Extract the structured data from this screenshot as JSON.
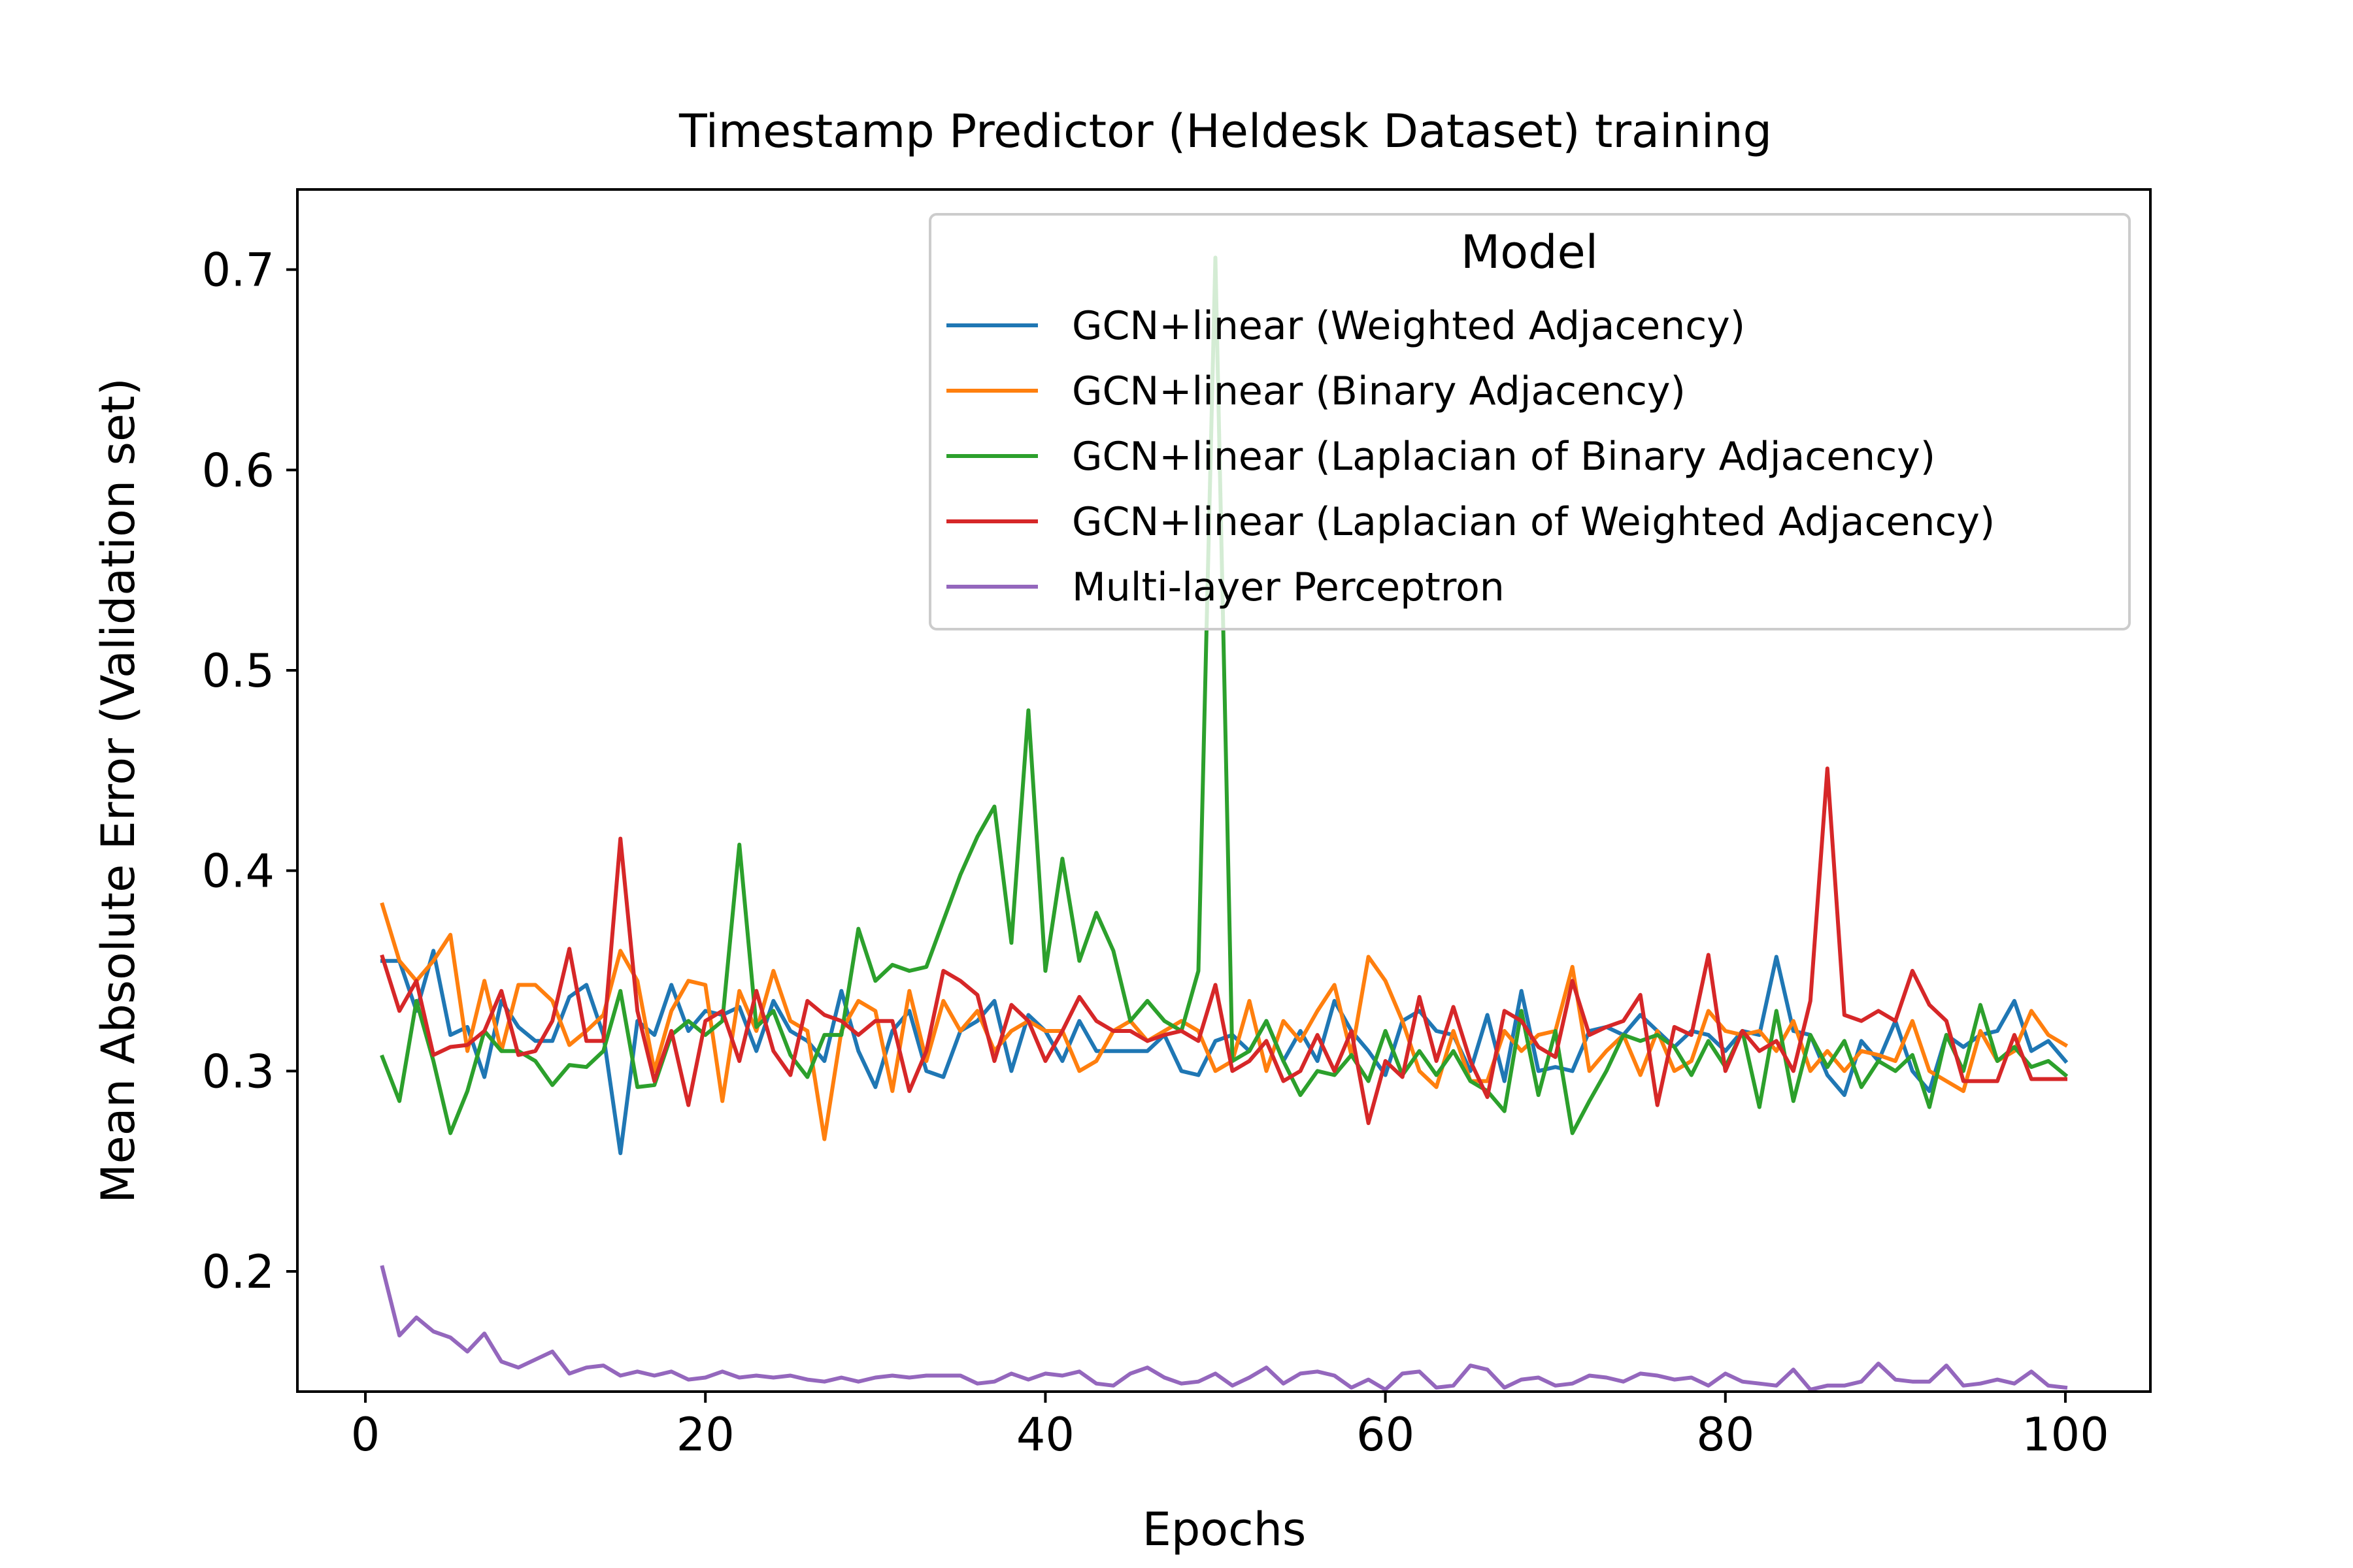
{
  "chart_data": {
    "type": "line",
    "title": "Timestamp Predictor (Heldesk Dataset) training",
    "xlabel": "Epochs",
    "ylabel": "Mean Absolute Error (Validation set)",
    "xlim": [
      -4,
      105
    ],
    "ylim": [
      0.14,
      0.74
    ],
    "xticks": [
      0,
      20,
      40,
      60,
      80,
      100
    ],
    "yticks": [
      0.2,
      0.3,
      0.4,
      0.5,
      0.6,
      0.7
    ],
    "xtick_labels": [
      "0",
      "20",
      "40",
      "60",
      "80",
      "100"
    ],
    "ytick_labels": [
      "0.2",
      "0.3",
      "0.4",
      "0.5",
      "0.6",
      "0.7"
    ],
    "grid": false,
    "legend_title": "Model",
    "legend_position": "upper right",
    "x": [
      1,
      2,
      3,
      4,
      5,
      6,
      7,
      8,
      9,
      10,
      11,
      12,
      13,
      14,
      15,
      16,
      17,
      18,
      19,
      20,
      21,
      22,
      23,
      24,
      25,
      26,
      27,
      28,
      29,
      30,
      31,
      32,
      33,
      34,
      35,
      36,
      37,
      38,
      39,
      40,
      41,
      42,
      43,
      44,
      45,
      46,
      47,
      48,
      49,
      50,
      51,
      52,
      53,
      54,
      55,
      56,
      57,
      58,
      59,
      60,
      61,
      62,
      63,
      64,
      65,
      66,
      67,
      68,
      69,
      70,
      71,
      72,
      73,
      74,
      75,
      76,
      77,
      78,
      79,
      80,
      81,
      82,
      83,
      84,
      85,
      86,
      87,
      88,
      89,
      90,
      91,
      92,
      93,
      94,
      95,
      96,
      97,
      98,
      99,
      100
    ],
    "series": [
      {
        "name": "GCN+linear (Weighted Adjacency)",
        "color": "#1f77b4",
        "values": [
          0.355,
          0.355,
          0.33,
          0.36,
          0.318,
          0.322,
          0.297,
          0.335,
          0.322,
          0.315,
          0.315,
          0.337,
          0.343,
          0.318,
          0.259,
          0.325,
          0.318,
          0.343,
          0.32,
          0.33,
          0.328,
          0.332,
          0.31,
          0.335,
          0.32,
          0.315,
          0.305,
          0.34,
          0.31,
          0.292,
          0.32,
          0.33,
          0.3,
          0.297,
          0.32,
          0.325,
          0.335,
          0.3,
          0.328,
          0.32,
          0.305,
          0.325,
          0.31,
          0.31,
          0.31,
          0.31,
          0.318,
          0.3,
          0.298,
          0.315,
          0.318,
          0.31,
          0.325,
          0.305,
          0.32,
          0.305,
          0.335,
          0.32,
          0.31,
          0.298,
          0.325,
          0.33,
          0.32,
          0.318,
          0.3,
          0.328,
          0.295,
          0.34,
          0.3,
          0.302,
          0.3,
          0.32,
          0.322,
          0.318,
          0.328,
          0.32,
          0.312,
          0.32,
          0.318,
          0.31,
          0.32,
          0.318,
          0.357,
          0.32,
          0.318,
          0.298,
          0.288,
          0.315,
          0.305,
          0.325,
          0.3,
          0.29,
          0.318,
          0.312,
          0.318,
          0.32,
          0.335,
          0.31,
          0.315,
          0.305
        ]
      },
      {
        "name": "GCN+linear (Binary Adjacency)",
        "color": "#ff7f0e",
        "values": [
          0.383,
          0.355,
          0.345,
          0.355,
          0.368,
          0.31,
          0.345,
          0.31,
          0.343,
          0.343,
          0.335,
          0.313,
          0.32,
          0.328,
          0.36,
          0.345,
          0.3,
          0.33,
          0.345,
          0.343,
          0.285,
          0.34,
          0.32,
          0.35,
          0.325,
          0.32,
          0.266,
          0.32,
          0.335,
          0.33,
          0.29,
          0.34,
          0.305,
          0.335,
          0.32,
          0.33,
          0.31,
          0.32,
          0.325,
          0.32,
          0.32,
          0.3,
          0.305,
          0.32,
          0.325,
          0.315,
          0.32,
          0.325,
          0.32,
          0.3,
          0.305,
          0.335,
          0.3,
          0.325,
          0.315,
          0.33,
          0.343,
          0.308,
          0.357,
          0.345,
          0.325,
          0.3,
          0.292,
          0.32,
          0.295,
          0.295,
          0.32,
          0.31,
          0.318,
          0.32,
          0.352,
          0.3,
          0.31,
          0.318,
          0.298,
          0.32,
          0.3,
          0.305,
          0.33,
          0.32,
          0.318,
          0.32,
          0.31,
          0.325,
          0.3,
          0.31,
          0.3,
          0.31,
          0.308,
          0.305,
          0.325,
          0.3,
          0.295,
          0.29,
          0.32,
          0.305,
          0.31,
          0.33,
          0.318,
          0.313
        ]
      },
      {
        "name": "GCN+linear (Laplacian of Binary Adjacency)",
        "color": "#2ca02c",
        "values": [
          0.307,
          0.285,
          0.335,
          0.305,
          0.269,
          0.29,
          0.32,
          0.31,
          0.31,
          0.305,
          0.293,
          0.303,
          0.302,
          0.31,
          0.34,
          0.292,
          0.293,
          0.318,
          0.325,
          0.318,
          0.325,
          0.413,
          0.322,
          0.33,
          0.308,
          0.297,
          0.318,
          0.318,
          0.371,
          0.345,
          0.353,
          0.35,
          0.352,
          0.375,
          0.398,
          0.417,
          0.432,
          0.364,
          0.48,
          0.35,
          0.406,
          0.355,
          0.379,
          0.36,
          0.325,
          0.335,
          0.325,
          0.32,
          0.35,
          0.706,
          0.305,
          0.31,
          0.325,
          0.305,
          0.288,
          0.3,
          0.298,
          0.308,
          0.295,
          0.32,
          0.298,
          0.31,
          0.298,
          0.31,
          0.295,
          0.29,
          0.28,
          0.33,
          0.288,
          0.32,
          0.269,
          0.285,
          0.3,
          0.318,
          0.315,
          0.318,
          0.312,
          0.298,
          0.315,
          0.302,
          0.32,
          0.282,
          0.33,
          0.285,
          0.318,
          0.302,
          0.315,
          0.292,
          0.305,
          0.3,
          0.308,
          0.282,
          0.318,
          0.3,
          0.333,
          0.305,
          0.312,
          0.302,
          0.305,
          0.298
        ]
      },
      {
        "name": "GCN+linear (Laplacian of Weighted Adjacency)",
        "color": "#d62728",
        "values": [
          0.357,
          0.33,
          0.345,
          0.308,
          0.312,
          0.313,
          0.32,
          0.34,
          0.308,
          0.31,
          0.325,
          0.361,
          0.315,
          0.315,
          0.416,
          0.33,
          0.295,
          0.32,
          0.283,
          0.325,
          0.33,
          0.305,
          0.34,
          0.31,
          0.298,
          0.335,
          0.328,
          0.325,
          0.318,
          0.325,
          0.325,
          0.29,
          0.31,
          0.35,
          0.345,
          0.338,
          0.305,
          0.333,
          0.325,
          0.305,
          0.32,
          0.337,
          0.325,
          0.32,
          0.32,
          0.315,
          0.318,
          0.32,
          0.315,
          0.343,
          0.3,
          0.305,
          0.315,
          0.295,
          0.3,
          0.318,
          0.3,
          0.32,
          0.274,
          0.305,
          0.297,
          0.337,
          0.305,
          0.332,
          0.305,
          0.287,
          0.33,
          0.325,
          0.312,
          0.307,
          0.345,
          0.318,
          0.322,
          0.325,
          0.338,
          0.283,
          0.322,
          0.318,
          0.358,
          0.3,
          0.32,
          0.31,
          0.315,
          0.3,
          0.335,
          0.451,
          0.328,
          0.325,
          0.33,
          0.325,
          0.35,
          0.333,
          0.325,
          0.295,
          0.295,
          0.295,
          0.318,
          0.296,
          0.296,
          0.296
        ]
      },
      {
        "name": "Multi-layer Perceptron",
        "color": "#9467bd",
        "values": [
          0.202,
          0.168,
          0.177,
          0.17,
          0.167,
          0.16,
          0.169,
          0.155,
          0.152,
          0.156,
          0.16,
          0.149,
          0.152,
          0.153,
          0.148,
          0.15,
          0.148,
          0.15,
          0.146,
          0.147,
          0.15,
          0.147,
          0.148,
          0.147,
          0.148,
          0.146,
          0.145,
          0.147,
          0.145,
          0.147,
          0.148,
          0.147,
          0.148,
          0.148,
          0.148,
          0.144,
          0.145,
          0.149,
          0.146,
          0.149,
          0.148,
          0.15,
          0.144,
          0.143,
          0.149,
          0.152,
          0.147,
          0.144,
          0.145,
          0.149,
          0.143,
          0.147,
          0.152,
          0.144,
          0.149,
          0.15,
          0.148,
          0.142,
          0.146,
          0.141,
          0.149,
          0.15,
          0.142,
          0.143,
          0.153,
          0.151,
          0.142,
          0.146,
          0.147,
          0.143,
          0.144,
          0.148,
          0.147,
          0.145,
          0.149,
          0.148,
          0.146,
          0.147,
          0.143,
          0.149,
          0.145,
          0.144,
          0.143,
          0.151,
          0.141,
          0.143,
          0.143,
          0.145,
          0.154,
          0.146,
          0.145,
          0.145,
          0.153,
          0.143,
          0.144,
          0.146,
          0.144,
          0.15,
          0.143,
          0.142
        ]
      }
    ]
  }
}
